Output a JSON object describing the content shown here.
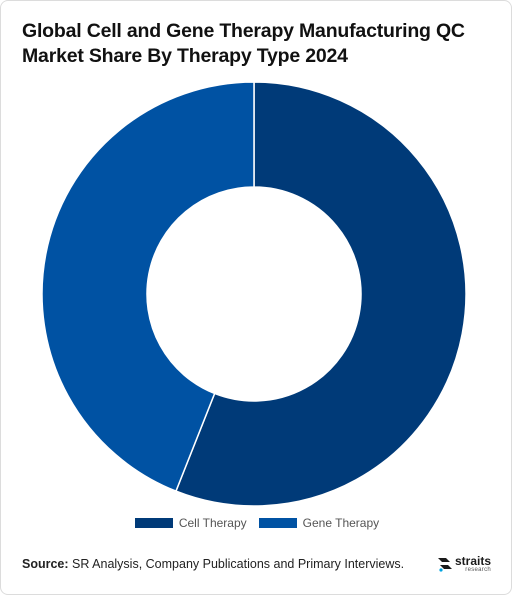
{
  "header": {
    "title_line1": "Global Cell and Gene Therapy Manufacturing QC",
    "title_line2": "Market Share By Therapy Type 2024"
  },
  "chart_data": {
    "type": "pie",
    "donut": true,
    "title": "Global Cell and Gene Therapy Manufacturing QC Market Share By Therapy Type 2024",
    "categories": [
      "Cell Therapy",
      "Gene Therapy"
    ],
    "values": [
      56,
      44
    ],
    "colors": [
      "#003a78",
      "#0052a3"
    ],
    "legend": "bottom-center"
  },
  "legend": {
    "items": [
      {
        "label": "Cell Therapy",
        "color": "#003a78"
      },
      {
        "label": "Gene Therapy",
        "color": "#0052a3"
      }
    ]
  },
  "footer": {
    "source_label": "Source:",
    "source_text": " SR Analysis, Company Publications and Primary Interviews.",
    "logo_word": "straits",
    "logo_sub": "research"
  }
}
